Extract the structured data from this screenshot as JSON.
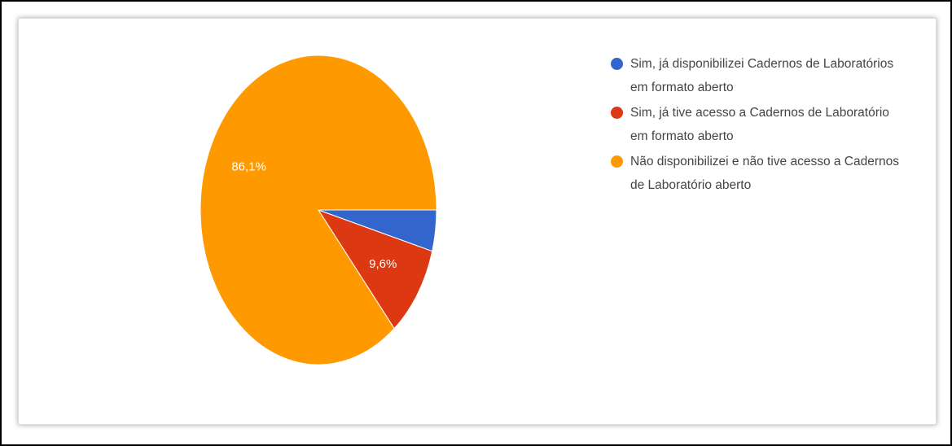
{
  "chart_data": {
    "type": "pie",
    "categories": [
      "Sim, já disponibilizei Cadernos de Laboratórios em formato aberto",
      "Sim, já tive acesso a Cadernos de Laboratório em formato aberto",
      "Não disponibilizei e não tive acesso a Cadernos de Laboratório aberto"
    ],
    "values": [
      4.3,
      9.6,
      86.1
    ],
    "value_labels": [
      null,
      "9,6%",
      "86,1%"
    ],
    "colors": [
      "#3366cc",
      "#dc3912",
      "#ff9900"
    ]
  }
}
